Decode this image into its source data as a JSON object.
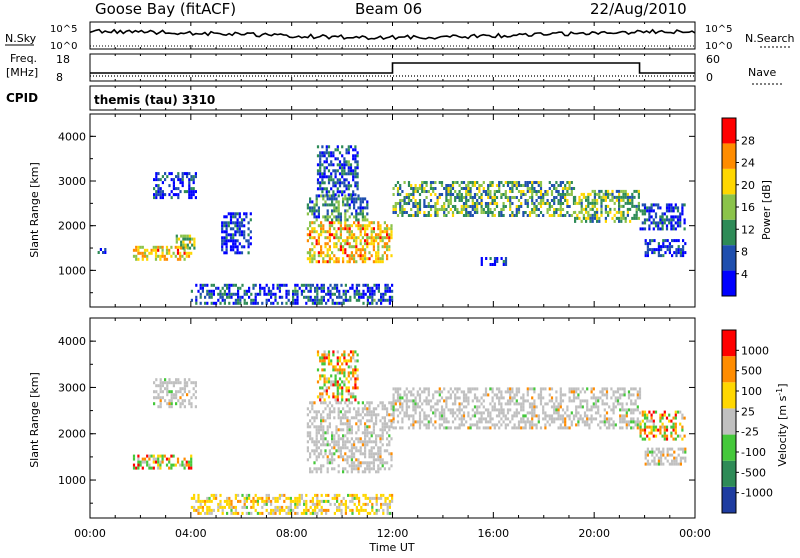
{
  "header": {
    "station": "Goose Bay (fitACF)",
    "beam": "Beam 06",
    "date": "22/Aug/2010"
  },
  "top_panel": {
    "left_label": "N.Sky",
    "left_ticks": [
      "10^5",
      "10^0"
    ],
    "right_ticks": [
      "10^5",
      "10^0"
    ],
    "right_label": "N.Search"
  },
  "freq_panel": {
    "left_label_1": "Freq.",
    "left_label_2": "[MHz]",
    "left_ticks": [
      "18",
      "8"
    ],
    "right_ticks": [
      "60",
      "0"
    ],
    "right_label": "Nave",
    "cpid_label": "CPID",
    "program": "themis (tau) 3310"
  },
  "chart_data": [
    {
      "type": "heatmap",
      "name": "power",
      "ylabel": "Slant Range [km]",
      "yticks": [
        "4000",
        "3000",
        "2000",
        "1000"
      ],
      "ylim": [
        180,
        4500
      ],
      "xlim_hours": [
        0,
        24
      ],
      "colorbar": {
        "label": "Power [dB]",
        "ticks": [
          "28",
          "24",
          "20",
          "16",
          "12",
          "8",
          "4"
        ],
        "colors": [
          "#0000ff",
          "#1f4fae",
          "#2e8b57",
          "#8bc34a",
          "#ffd700",
          "#ff8c00",
          "#ff0000"
        ]
      },
      "echo_regions": [
        {
          "t0": 0.3,
          "t1": 0.6,
          "r0": 1400,
          "r1": 1500,
          "db": 6
        },
        {
          "t0": 1.7,
          "t1": 4.0,
          "r0": 1250,
          "r1": 1550,
          "db": 22
        },
        {
          "t0": 3.4,
          "t1": 4.1,
          "r0": 1500,
          "r1": 1800,
          "db": 18
        },
        {
          "t0": 2.5,
          "t1": 4.2,
          "r0": 2600,
          "r1": 3200,
          "db": 6
        },
        {
          "t0": 5.2,
          "t1": 6.4,
          "r0": 1400,
          "r1": 2300,
          "db": 6
        },
        {
          "t0": 8.6,
          "t1": 12.0,
          "r0": 1200,
          "r1": 2100,
          "db": 22
        },
        {
          "t0": 8.6,
          "t1": 11.0,
          "r0": 2100,
          "r1": 2700,
          "db": 12
        },
        {
          "t0": 9.0,
          "t1": 10.6,
          "r0": 2700,
          "r1": 3800,
          "db": 8
        },
        {
          "t0": 12.0,
          "t1": 19.2,
          "r0": 2200,
          "r1": 3000,
          "db": 14
        },
        {
          "t0": 19.2,
          "t1": 21.8,
          "r0": 2100,
          "r1": 2800,
          "db": 16
        },
        {
          "t0": 21.8,
          "t1": 23.6,
          "r0": 1900,
          "r1": 2500,
          "db": 8
        },
        {
          "t0": 22.0,
          "t1": 23.6,
          "r0": 1350,
          "r1": 1700,
          "db": 6
        },
        {
          "t0": 15.5,
          "t1": 16.5,
          "r0": 1100,
          "r1": 1300,
          "db": 6
        },
        {
          "t0": 4.0,
          "t1": 12.0,
          "r0": 250,
          "r1": 700,
          "db": 8
        }
      ]
    },
    {
      "type": "heatmap",
      "name": "velocity",
      "ylabel": "Slant Range [km]",
      "yticks": [
        "4000",
        "3000",
        "2000",
        "1000"
      ],
      "ylim": [
        180,
        4500
      ],
      "xlim_hours": [
        0,
        24
      ],
      "xticks": [
        "00:00",
        "04:00",
        "08:00",
        "12:00",
        "16:00",
        "20:00",
        "00:00"
      ],
      "xlabel": "Time UT",
      "colorbar": {
        "label": "Velocity [m s",
        "label_sup": "-1",
        "label_end": "]",
        "ticks": [
          "1000",
          "500",
          "100",
          "25",
          "-25",
          "-100",
          "-500",
          "-1000"
        ],
        "colors": [
          "#1e3ca0",
          "#2e8b57",
          "#44c83a",
          "#c0c0c0",
          "#ffd700",
          "#ff8c00",
          "#ff0000"
        ]
      },
      "echo_regions": [
        {
          "t0": 1.7,
          "t1": 4.0,
          "r0": 1250,
          "r1": 1550,
          "kind": "mixed"
        },
        {
          "t0": 2.5,
          "t1": 4.2,
          "r0": 2600,
          "r1": 3200,
          "kind": "gray"
        },
        {
          "t0": 8.6,
          "t1": 12.0,
          "r0": 1200,
          "r1": 2700,
          "kind": "gray"
        },
        {
          "t0": 9.0,
          "t1": 10.6,
          "r0": 2700,
          "r1": 3800,
          "kind": "mixed"
        },
        {
          "t0": 12.0,
          "t1": 21.8,
          "r0": 2100,
          "r1": 3000,
          "kind": "gray"
        },
        {
          "t0": 21.8,
          "t1": 23.6,
          "r0": 1900,
          "r1": 2500,
          "kind": "mixed"
        },
        {
          "t0": 22.0,
          "t1": 23.6,
          "r0": 1350,
          "r1": 1700,
          "kind": "gray"
        },
        {
          "t0": 4.0,
          "t1": 12.0,
          "r0": 250,
          "r1": 700,
          "kind": "warm"
        }
      ]
    }
  ]
}
